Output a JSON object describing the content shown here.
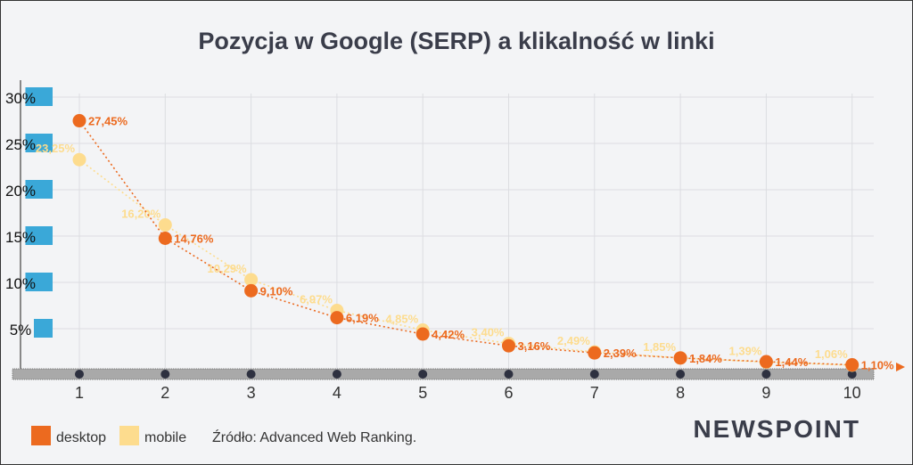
{
  "chart_data": {
    "type": "line",
    "title": "Pozycja w Google (SERP) a klikalność w linki",
    "x": [
      1,
      2,
      3,
      4,
      5,
      6,
      7,
      8,
      9,
      10
    ],
    "x_tick_labels": [
      "1",
      "2",
      "3",
      "4",
      "5",
      "6",
      "7",
      "8",
      "9",
      "10"
    ],
    "y_tick_labels": [
      "5%",
      "10%",
      "15%",
      "20%",
      "25%",
      "30%"
    ],
    "y_ticks": [
      5,
      10,
      15,
      20,
      25,
      30
    ],
    "ylim": [
      0,
      30
    ],
    "grid": true,
    "legend_placement": "bottom-left",
    "series": [
      {
        "name": "desktop",
        "color": "#ec6a1f",
        "values": [
          27.45,
          14.76,
          9.1,
          6.19,
          4.42,
          3.16,
          2.39,
          1.84,
          1.44,
          1.1
        ],
        "labels": [
          "27,45%",
          "14,76%",
          "9,10%",
          "6,19%",
          "4,42%",
          "3,16%",
          "2,39%",
          "1,84%",
          "1,44%",
          "1,10%"
        ]
      },
      {
        "name": "mobile",
        "color": "#fddc8e",
        "values": [
          23.25,
          16.2,
          10.29,
          6.97,
          4.85,
          3.4,
          2.49,
          1.85,
          1.39,
          1.06
        ],
        "labels": [
          "23,25%",
          "16,20%",
          "10,29%",
          "6,97%",
          "4,85%",
          "3,40%",
          "2,49%",
          "1,85%",
          "1,39%",
          "1,06%"
        ]
      }
    ],
    "source": "Źródło: Advanced Web Ranking.",
    "logo": "NEWSPOINT",
    "y_label_bg": "#3aa8d8"
  }
}
